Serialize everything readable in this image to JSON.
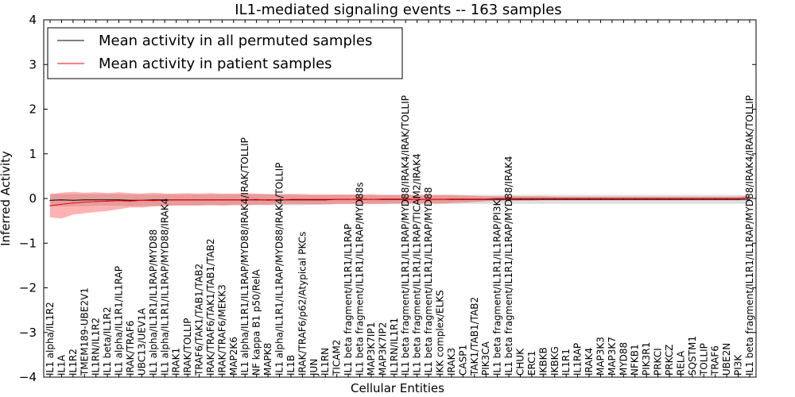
{
  "chart_data": {
    "type": "line",
    "title": "IL1-mediated signaling events -- 163 samples",
    "xlabel": "Cellular Entities",
    "ylabel": "Inferred Activity",
    "ylim": [
      -4,
      4
    ],
    "yticks": [
      "−4",
      "−3",
      "−2",
      "−1",
      "0",
      "1",
      "2",
      "3",
      "4"
    ],
    "grid": false,
    "legend_position": "top-left",
    "categories": [
      "IL1 alpha/IL1R2",
      "IL1A",
      "IL1R2",
      "TMEM189-UBE2V1",
      "IL1RN/IL1R2",
      "IL1 beta/IL1R2",
      "IL1 alpha/IL1R1/IL1RAP",
      "IRAK/TRAF6",
      "UBC13/UEV1A",
      "IL1 alpha/IL1R1/IL1RAP/MYD88",
      "IL1 alpha/IL1R1/IL1RAP/MYD88/IRAK4",
      "IRAK1",
      "IRAK/TOLLIP",
      "TRAF6/TAK1/TAB1/TAB2",
      "IRAK/TRAF6/TAK1/TAB1/TAB2",
      "IRAK/TRAF6/MEKK3",
      "MAP2K6",
      "IL1 alpha/IL1R1/IL1RAP/MYD88/IRAK4/IRAK/TOLLIP",
      "NF kappa B1 p50/RelA",
      "MAPK8",
      "IL1 alpha/IL1R1/IL1RAP/MYD88/IRAK4/TOLLIP",
      "IL1B",
      "IRAK/TRAF6/p62/Atypical PKCs",
      "JUN",
      "IL1RN",
      "TICAM2",
      "IL1 beta fragment/IL1R1/IL1RAP",
      "IL1 beta fragment/IL1R1/IL1RAP/MYD88s",
      "MAP3K7IP1",
      "MAP3K7IP2",
      "IL1RN/IL1R1",
      "IL1 beta fragment/IL1R1/IL1RAP/MYD88/IRAK4/IRAK/TOLLIP",
      "IL1 beta fragment/IL1R1/IL1RAP/TICAM2/IRAK4",
      "IL1 beta fragment/IL1R1/IL1RAP/MYD88",
      "IKK complex/ELKS",
      "IRAK3",
      "CASP1",
      "TAK1/TAB1/TAB2",
      "PIK3CA",
      "IL1 beta fragment/IL1R1/IL1RAP/PI3K",
      "IL1 beta fragment/IL1R1/IL1RAP/MYD88/IRAK4",
      "CHUK",
      "ERC1",
      "IKBKB",
      "IKBKG",
      "IL1R1",
      "IL1RAP",
      "IRAK4",
      "MAP3K3",
      "MAP3K7",
      "MYD88",
      "NFKB1",
      "PIK3R1",
      "PRKCI",
      "PRKCZ",
      "RELA",
      "SQSTM1",
      "TOLLIP",
      "TRAF6",
      "UBE2N",
      "PI3K",
      "IL1 beta fragment/IL1R1/IL1RAP/MYD88/IRAK4/IRAK/TOLLIP"
    ],
    "series": [
      {
        "name": "Mean activity in all permuted samples",
        "color": "#000000",
        "values": [
          -0.04,
          -0.03,
          -0.04,
          -0.03,
          -0.03,
          -0.03,
          -0.03,
          -0.04,
          -0.04,
          -0.03,
          -0.03,
          -0.03,
          -0.03,
          -0.03,
          -0.03,
          -0.03,
          -0.03,
          -0.03,
          -0.03,
          -0.03,
          -0.03,
          -0.03,
          -0.03,
          -0.03,
          -0.03,
          -0.02,
          -0.02,
          -0.02,
          -0.02,
          -0.02,
          -0.02,
          -0.02,
          -0.02,
          -0.02,
          -0.02,
          -0.02,
          -0.02,
          -0.02,
          -0.02,
          -0.02,
          -0.02,
          -0.02,
          -0.02,
          -0.02,
          -0.02,
          -0.02,
          -0.02,
          -0.02,
          -0.02,
          -0.02,
          -0.02,
          -0.02,
          -0.02,
          -0.02,
          -0.02,
          -0.02,
          -0.02,
          -0.02,
          -0.02,
          -0.02,
          -0.02,
          -0.02
        ],
        "band_low": [
          -0.18,
          -0.18,
          -0.17,
          -0.17,
          -0.16,
          -0.16,
          -0.16,
          -0.17,
          -0.17,
          -0.16,
          -0.16,
          -0.15,
          -0.15,
          -0.15,
          -0.15,
          -0.15,
          -0.15,
          -0.15,
          -0.15,
          -0.15,
          -0.15,
          -0.15,
          -0.15,
          -0.14,
          -0.14,
          -0.13,
          -0.13,
          -0.13,
          -0.13,
          -0.13,
          -0.13,
          -0.13,
          -0.13,
          -0.13,
          -0.13,
          -0.12,
          -0.12,
          -0.12,
          -0.12,
          -0.12,
          -0.12,
          -0.12,
          -0.12,
          -0.12,
          -0.12,
          -0.12,
          -0.12,
          -0.12,
          -0.12,
          -0.12,
          -0.12,
          -0.12,
          -0.12,
          -0.12,
          -0.12,
          -0.12,
          -0.12,
          -0.12,
          -0.12,
          -0.12,
          -0.12,
          -0.12
        ],
        "band_high": [
          0.1,
          0.1,
          0.1,
          0.1,
          0.1,
          0.1,
          0.1,
          0.09,
          0.09,
          0.09,
          0.09,
          0.09,
          0.09,
          0.09,
          0.09,
          0.09,
          0.09,
          0.09,
          0.09,
          0.09,
          0.09,
          0.09,
          0.08,
          0.08,
          0.08,
          0.08,
          0.08,
          0.08,
          0.08,
          0.08,
          0.08,
          0.08,
          0.08,
          0.08,
          0.08,
          0.08,
          0.08,
          0.08,
          0.08,
          0.08,
          0.08,
          0.08,
          0.08,
          0.08,
          0.08,
          0.08,
          0.08,
          0.08,
          0.08,
          0.08,
          0.08,
          0.08,
          0.08,
          0.08,
          0.08,
          0.08,
          0.08,
          0.08,
          0.08,
          0.08,
          0.08,
          0.08
        ]
      },
      {
        "name": "Mean activity in patient samples",
        "color": "#ff0000",
        "values": [
          -0.16,
          -0.13,
          -0.1,
          -0.08,
          -0.07,
          -0.06,
          -0.05,
          -0.06,
          -0.04,
          -0.05,
          -0.04,
          -0.03,
          -0.03,
          -0.03,
          -0.03,
          -0.03,
          -0.03,
          -0.03,
          -0.02,
          -0.04,
          -0.03,
          -0.02,
          -0.02,
          -0.02,
          -0.02,
          -0.02,
          -0.02,
          -0.01,
          -0.02,
          -0.01,
          -0.01,
          -0.01,
          -0.02,
          -0.02,
          -0.02,
          -0.01,
          -0.01,
          -0.01,
          -0.01,
          0.0,
          0.0,
          0.0,
          0.0,
          0.0,
          0.0,
          0.0,
          0.0,
          0.0,
          0.0,
          0.0,
          0.0,
          0.0,
          0.0,
          0.0,
          0.0,
          0.0,
          0.0,
          0.0,
          0.0,
          0.0,
          0.0,
          0.02
        ],
        "band_low": [
          -0.42,
          -0.45,
          -0.36,
          -0.33,
          -0.3,
          -0.28,
          -0.24,
          -0.2,
          -0.2,
          -0.18,
          -0.17,
          -0.16,
          -0.16,
          -0.16,
          -0.15,
          -0.16,
          -0.15,
          -0.15,
          -0.14,
          -0.14,
          -0.13,
          -0.13,
          -0.13,
          -0.13,
          -0.13,
          -0.12,
          -0.12,
          -0.12,
          -0.12,
          -0.12,
          -0.11,
          -0.11,
          -0.11,
          -0.11,
          -0.11,
          -0.1,
          -0.09,
          -0.08,
          -0.06,
          -0.05,
          -0.05,
          -0.05,
          -0.05,
          -0.04,
          -0.04,
          -0.04,
          -0.04,
          -0.04,
          -0.04,
          -0.04,
          -0.04,
          -0.04,
          -0.04,
          -0.04,
          -0.04,
          -0.04,
          -0.04,
          -0.04,
          -0.04,
          -0.04,
          -0.04,
          -0.02
        ],
        "band_high": [
          0.1,
          0.13,
          0.15,
          0.13,
          0.14,
          0.12,
          0.14,
          0.12,
          0.11,
          0.13,
          0.11,
          0.11,
          0.12,
          0.11,
          0.12,
          0.11,
          0.11,
          0.12,
          0.11,
          0.1,
          0.1,
          0.1,
          0.1,
          0.09,
          0.09,
          0.09,
          0.09,
          0.09,
          0.09,
          0.08,
          0.08,
          0.08,
          0.08,
          0.08,
          0.08,
          0.08,
          0.07,
          0.06,
          0.05,
          0.05,
          0.05,
          0.05,
          0.05,
          0.05,
          0.04,
          0.04,
          0.04,
          0.04,
          0.04,
          0.04,
          0.04,
          0.04,
          0.04,
          0.04,
          0.04,
          0.04,
          0.04,
          0.04,
          0.04,
          0.04,
          0.04,
          0.06
        ]
      }
    ]
  }
}
